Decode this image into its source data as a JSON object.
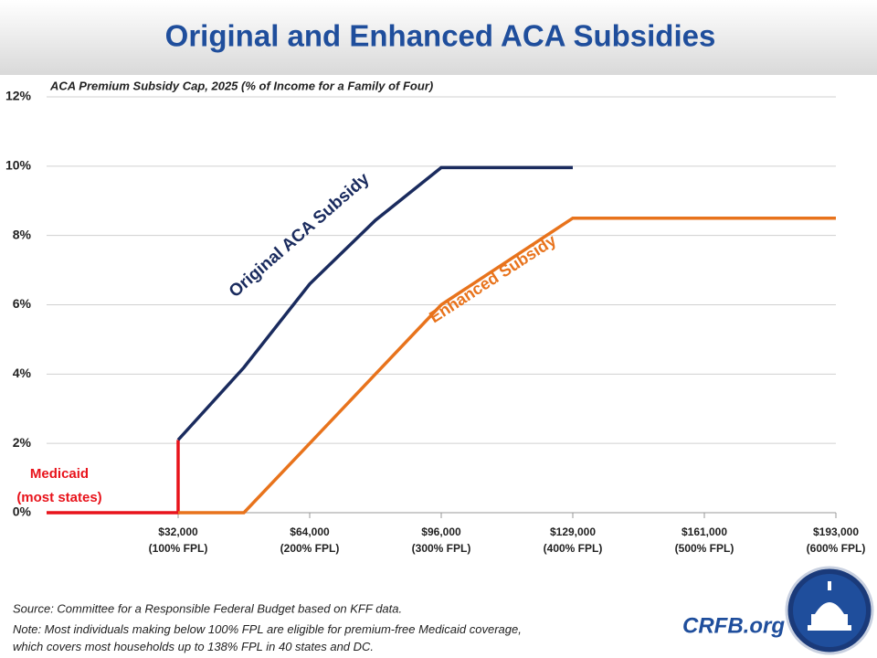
{
  "chart_data": {
    "type": "line",
    "title": "Original and Enhanced ACA Subsidies",
    "subtitle": "ACA Premium Subsidy Cap, 2025 (% of Income for a Family of Four)",
    "xlim": [
      0,
      600
    ],
    "xticks": [
      {
        "value": 100,
        "label": "$32,000 (100% FPL)"
      },
      {
        "value": 200,
        "label": "$64,000 (200% FPL)"
      },
      {
        "value": 300,
        "label": "$96,000 (300% FPL)"
      },
      {
        "value": 400,
        "label": "$129,000 (400% FPL)"
      },
      {
        "value": 500,
        "label": "$161,000 (500% FPL)"
      },
      {
        "value": 600,
        "label": "$193,000 (600% FPL)"
      }
    ],
    "ylim": [
      0,
      12
    ],
    "yticks": [
      {
        "value": 0,
        "label": "0%"
      },
      {
        "value": 2,
        "label": "2%"
      },
      {
        "value": 4,
        "label": "4%"
      },
      {
        "value": 6,
        "label": "6%"
      },
      {
        "value": 8,
        "label": "8%"
      },
      {
        "value": 10,
        "label": "10%"
      },
      {
        "value": 12,
        "label": "12%"
      }
    ],
    "grid": true,
    "series": [
      {
        "name": "Medicaid (most states)",
        "color": "#e8131b",
        "x": [
          0,
          100,
          100
        ],
        "values": [
          0,
          0,
          2.1
        ]
      },
      {
        "name": "Enhanced Subsidy",
        "color": "#e8731c",
        "x": [
          100,
          150,
          200,
          250,
          300,
          400,
          600
        ],
        "values": [
          0,
          0,
          2,
          4,
          6,
          8.5,
          8.5
        ]
      },
      {
        "name": "Original ACA Subsidy",
        "color": "#1a2b5e",
        "x": [
          100,
          150,
          200,
          250,
          300,
          400
        ],
        "values": [
          2.1,
          4.19,
          6.6,
          8.44,
          9.96,
          9.96
        ]
      }
    ],
    "source": "Source: Committee for a Responsible Federal Budget based on KFF data.",
    "note": "Note: Most individuals making below 100% FPL are eligible for premium-free Medicaid coverage, which covers most households up to 138% FPL in 40 states and DC.",
    "branding": "CRFB.org"
  }
}
